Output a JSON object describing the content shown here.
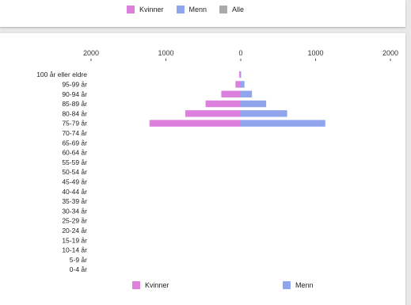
{
  "legend_top": [
    {
      "label": "Kvinner",
      "color": "#dd7fdd"
    },
    {
      "label": "Menn",
      "color": "#8fa6ee"
    },
    {
      "label": "Alle",
      "color": "#aaaaaa"
    }
  ],
  "legend_bottom": [
    {
      "label": "Kvinner",
      "color": "#dd7fdd"
    },
    {
      "label": "Menn",
      "color": "#8fa6ee"
    }
  ],
  "chart_data": {
    "type": "bar",
    "orientation": "horizontal",
    "title": "",
    "xlabel": "",
    "ylabel": "",
    "x_ticks": [
      {
        "value": -2000,
        "label": "2000"
      },
      {
        "value": -1000,
        "label": "1000"
      },
      {
        "value": 0,
        "label": "0"
      },
      {
        "value": 1000,
        "label": "1000"
      },
      {
        "value": 2000,
        "label": "2000"
      }
    ],
    "xlim": [
      -2000,
      2000
    ],
    "legend_position": "bottom",
    "categories": [
      "100 år eller eldre",
      "95-99 år",
      "90-94 år",
      "85-89 år",
      "80-84 år",
      "75-79 år",
      "70-74 år",
      "65-69 år",
      "60-64 år",
      "55-59 år",
      "50-54 år",
      "45-49 år",
      "40-44 år",
      "35-39 år",
      "30-34 år",
      "25-29 år",
      "20-24 år",
      "15-19 år",
      "10-14 år",
      "5-9 år",
      "0-4 år"
    ],
    "series": [
      {
        "name": "Kvinner",
        "color": "#dd7fdd",
        "direction": "left",
        "values": [
          20,
          70,
          260,
          470,
          740,
          1220,
          0,
          0,
          0,
          0,
          0,
          0,
          0,
          0,
          0,
          0,
          0,
          0,
          0,
          0,
          0
        ]
      },
      {
        "name": "Menn",
        "color": "#8fa6ee",
        "direction": "right",
        "values": [
          5,
          50,
          150,
          340,
          620,
          1130,
          0,
          0,
          0,
          0,
          0,
          0,
          0,
          0,
          0,
          0,
          0,
          0,
          0,
          0,
          0
        ]
      }
    ]
  }
}
